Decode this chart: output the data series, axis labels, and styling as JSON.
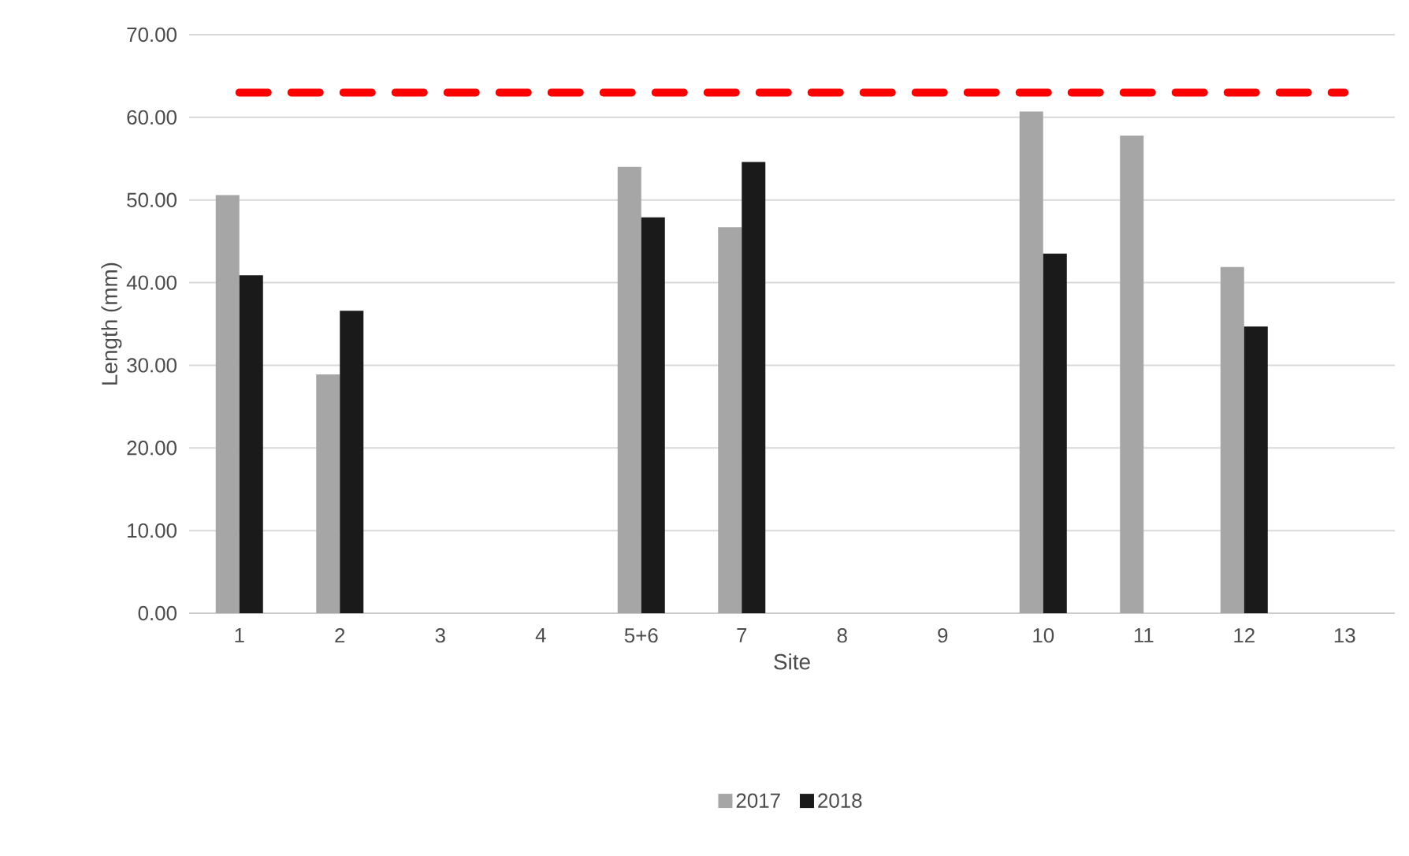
{
  "chart_data": {
    "type": "bar",
    "xlabel": "Site",
    "ylabel": "Length (mm)",
    "categories": [
      "1",
      "2",
      "3",
      "4",
      "5+6",
      "7",
      "8",
      "9",
      "10",
      "11",
      "12",
      "13"
    ],
    "series": [
      {
        "name": "2017",
        "color": "#a6a6a6",
        "values": [
          50.6,
          28.9,
          null,
          null,
          54.0,
          46.7,
          null,
          null,
          60.7,
          57.8,
          41.9,
          null
        ]
      },
      {
        "name": "2018",
        "color": "#1a1a1a",
        "values": [
          40.9,
          36.6,
          null,
          null,
          47.9,
          54.6,
          null,
          null,
          43.5,
          null,
          34.7,
          null
        ]
      }
    ],
    "ylim": [
      0,
      70
    ],
    "yticks": [
      {
        "value": 0,
        "label": "0.00"
      },
      {
        "value": 10,
        "label": "10.00"
      },
      {
        "value": 20,
        "label": "20.00"
      },
      {
        "value": 30,
        "label": "30.00"
      },
      {
        "value": 40,
        "label": "40.00"
      },
      {
        "value": 50,
        "label": "50.00"
      },
      {
        "value": 60,
        "label": "60.00"
      },
      {
        "value": 70,
        "label": "70.00"
      }
    ],
    "ref_lines": [
      {
        "axis": "y",
        "value": 63.0,
        "color": "#ff0000",
        "line_style": "dashed"
      }
    ],
    "grid": "y",
    "legend": "bottom"
  }
}
